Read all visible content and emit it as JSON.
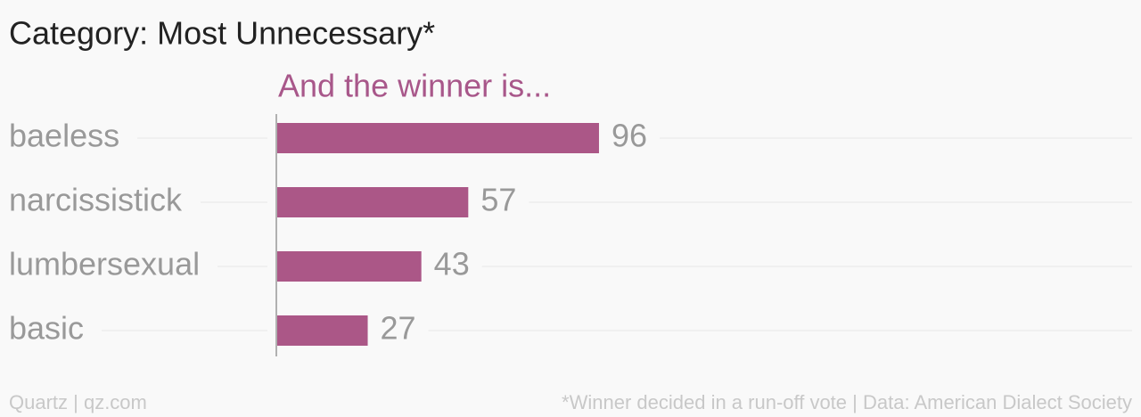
{
  "chart_data": {
    "type": "bar",
    "orientation": "horizontal",
    "title": "Category: Most Unnecessary*",
    "subtitle": "And the winner is...",
    "categories": [
      "baeless",
      "narcissistick",
      "lumbersexual",
      "basic"
    ],
    "values": [
      96,
      57,
      43,
      27
    ],
    "color": "#ab5787",
    "grid": true,
    "source_left": "Quartz | qz.com",
    "source_right": "*Winner decided in a run-off vote | Data: American Dialect Society"
  }
}
